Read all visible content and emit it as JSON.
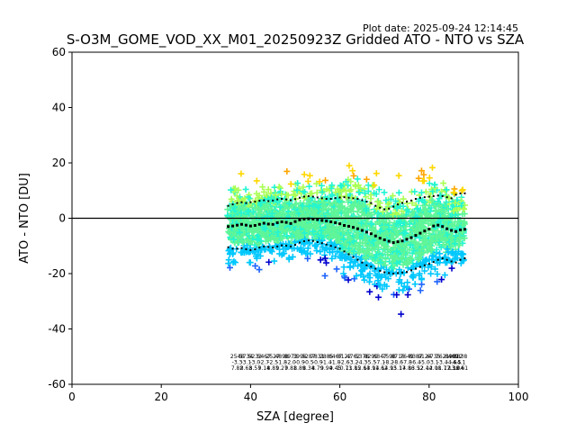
{
  "plot_date": "Plot date: 2025-09-24 12:14:45",
  "chart_data": {
    "type": "scatter",
    "title": "S-O3M_GOME_VOD_XX_M01_20250923Z Gridded ATO - NTO vs SZA",
    "xlabel": "SZA [degree]",
    "ylabel": "ATO - NTO [DU]",
    "xlim": [
      0,
      100
    ],
    "ylim": [
      -60,
      60
    ],
    "xticks": [
      "0",
      "20",
      "40",
      "60",
      "80",
      "100"
    ],
    "yticks": [
      "60",
      "40",
      "20",
      "0",
      "-20",
      "-40",
      "-60"
    ],
    "zero_line": 0,
    "grid": false,
    "legend": "none",
    "scatter_colors": [
      "#0000cd",
      "#1e64ff",
      "#00c8ff",
      "#22f5d2",
      "#5ff598",
      "#aaff55",
      "#ffd700",
      "#ffa500"
    ],
    "series": [
      {
        "style": "black squares",
        "x": [
          35,
          36,
          37,
          38,
          39,
          40,
          41,
          42,
          43,
          44,
          45,
          46,
          47,
          48,
          49,
          50,
          51,
          52,
          53,
          54,
          55,
          56,
          57,
          58,
          59,
          60,
          61,
          62,
          63,
          64,
          65,
          66,
          67,
          68,
          69,
          70,
          71,
          72,
          73,
          74,
          75,
          76,
          77,
          78,
          79,
          80,
          81,
          82,
          83,
          84,
          85,
          86,
          87,
          88
        ],
        "y": [
          -3,
          -2.8,
          -2.5,
          -2.2,
          -2.5,
          -2.8,
          -2.6,
          -2.2,
          -1.8,
          -2.1,
          -2.2,
          -1.6,
          -1.3,
          -1.5,
          -1.9,
          -1.2,
          -0.6,
          -0.3,
          -0.2,
          -0.3,
          -0.5,
          -0.8,
          -1,
          -1.3,
          -1.6,
          -2,
          -2.6,
          -2.9,
          -3.3,
          -3.8,
          -4.4,
          -5,
          -5.6,
          -6.4,
          -7.2,
          -7.8,
          -8.3,
          -8.8,
          -8.5,
          -8.2,
          -7.6,
          -7,
          -6.2,
          -5.4,
          -4.6,
          -3.9,
          -2.8,
          -2.5,
          -3,
          -3.8,
          -4.4,
          -4.8,
          -4.2,
          -4
        ]
      },
      {
        "style": "black dots upper",
        "x": [
          35,
          36,
          37,
          38,
          39,
          40,
          41,
          42,
          43,
          44,
          45,
          46,
          47,
          48,
          49,
          50,
          51,
          52,
          53,
          54,
          55,
          56,
          57,
          58,
          59,
          60,
          61,
          62,
          63,
          64,
          65,
          66,
          67,
          68,
          69,
          70,
          71,
          72,
          73,
          74,
          75,
          76,
          77,
          78,
          79,
          80,
          81,
          82,
          83,
          84,
          85,
          86,
          87,
          88
        ],
        "y": [
          4.5,
          5,
          5.5,
          5.8,
          5.5,
          5.8,
          6,
          6.3,
          6.5,
          6.2,
          6.4,
          6.8,
          7,
          6.8,
          6.5,
          6.9,
          7.4,
          7.8,
          8,
          7.8,
          7.5,
          7.2,
          7,
          7,
          7.3,
          7.5,
          7.6,
          7.4,
          7.2,
          7,
          6.5,
          6,
          5.5,
          4.5,
          3.8,
          3.2,
          3.5,
          4.2,
          5,
          5.5,
          6,
          6.4,
          7,
          7.4,
          7.6,
          7.8,
          8,
          8.2,
          8,
          7.6,
          7.2,
          8.5,
          9,
          9
        ]
      },
      {
        "style": "black dots lower",
        "x": [
          35,
          36,
          37,
          38,
          39,
          40,
          41,
          42,
          43,
          44,
          45,
          46,
          47,
          48,
          49,
          50,
          51,
          52,
          53,
          54,
          55,
          56,
          57,
          58,
          59,
          60,
          61,
          62,
          63,
          64,
          65,
          66,
          67,
          68,
          69,
          70,
          71,
          72,
          73,
          74,
          75,
          76,
          77,
          78,
          79,
          80,
          81,
          82,
          83,
          84,
          85,
          86,
          87,
          88
        ],
        "y": [
          -10.5,
          -11,
          -11,
          -10.8,
          -11.2,
          -11.5,
          -11.2,
          -10.6,
          -10.2,
          -10.4,
          -10.6,
          -10.2,
          -9.8,
          -9.9,
          -10.2,
          -9.6,
          -8.8,
          -8.3,
          -8,
          -8.2,
          -8.6,
          -9,
          -9.5,
          -10,
          -10.5,
          -11,
          -12,
          -13,
          -14,
          -15,
          -16,
          -17,
          -17.5,
          -18.2,
          -19,
          -19.5,
          -19.8,
          -20,
          -19.8,
          -19.6,
          -19.4,
          -18.8,
          -18.2,
          -17.6,
          -17,
          -16.5,
          -15.8,
          -15,
          -14.5,
          -15,
          -15.6,
          -16,
          -15,
          -14.5
        ]
      }
    ],
    "annotations": [
      {
        "x": 37,
        "lines": [
          "2548",
          "-3.3",
          "7.82"
        ]
      },
      {
        "x": 39,
        "lines": [
          "5734",
          "-3.1",
          "8.63"
        ]
      },
      {
        "x": 41,
        "lines": [
          "5233",
          "-3.0",
          "8.57"
        ]
      },
      {
        "x": 43,
        "lines": [
          "5467",
          "-2.7",
          "9.14"
        ]
      },
      {
        "x": 45,
        "lines": [
          "2527",
          "-2.5",
          "8.81"
        ]
      },
      {
        "x": 47,
        "lines": [
          "4898",
          "-1.8",
          "9.27"
        ]
      },
      {
        "x": 49,
        "lines": [
          "8973",
          "-2.0",
          "9.81"
        ]
      },
      {
        "x": 51,
        "lines": [
          "3996",
          "-0.9",
          "8.89"
        ]
      },
      {
        "x": 53,
        "lines": [
          "5287",
          "-0.5",
          "8.34"
        ]
      },
      {
        "x": 55,
        "lines": [
          "7831",
          "-0.9",
          "8.79"
        ]
      },
      {
        "x": 57,
        "lines": [
          "2885",
          "-1.4",
          "9.94"
        ]
      },
      {
        "x": 59,
        "lines": [
          "6467",
          "-1.8",
          "9.45"
        ]
      },
      {
        "x": 61,
        "lines": [
          "8122",
          "-2.6",
          "10.73"
        ]
      },
      {
        "x": 63,
        "lines": [
          "4762",
          "-3.2",
          "11.85"
        ]
      },
      {
        "x": 65,
        "lines": [
          "5378",
          "-4.3",
          "12.64"
        ]
      },
      {
        "x": 67,
        "lines": [
          "8299",
          "-5.5",
          "13.91"
        ]
      },
      {
        "x": 69,
        "lines": [
          "6347",
          "-7.1",
          "14.62"
        ]
      },
      {
        "x": 71,
        "lines": [
          "7598",
          "-8.2",
          "14.93"
        ]
      },
      {
        "x": 73,
        "lines": [
          "8716",
          "-8.6",
          "15.17"
        ]
      },
      {
        "x": 75,
        "lines": [
          "7649",
          "-7.8",
          "14.86"
        ]
      },
      {
        "x": 77,
        "lines": [
          "8387",
          "-6.4",
          "13.52"
        ]
      },
      {
        "x": 79,
        "lines": [
          "9124",
          "-5.0",
          "12.44"
        ]
      },
      {
        "x": 81,
        "lines": [
          "6735",
          "-3.1",
          "12.08"
        ]
      },
      {
        "x": 83,
        "lines": [
          "7621",
          "-3.4",
          "11.77"
        ]
      },
      {
        "x": 85,
        "lines": [
          "8469",
          "-4.6",
          "12.36"
        ]
      },
      {
        "x": 86,
        "lines": [
          "9012",
          "-4.5",
          "13.04"
        ]
      },
      {
        "x": 87,
        "lines": [
          "8838",
          "-4.1",
          "12.61"
        ]
      }
    ]
  }
}
